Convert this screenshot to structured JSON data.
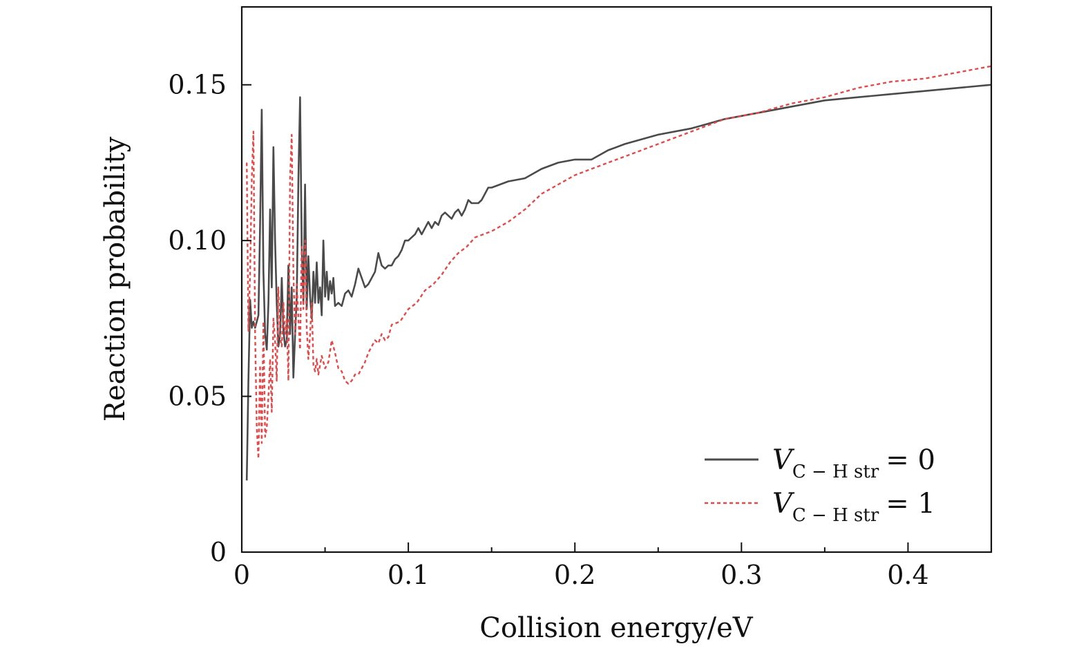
{
  "chart_data": {
    "type": "line",
    "title": "",
    "xlabel": "Collision energy/eV",
    "ylabel": "Reaction probability",
    "xlim": [
      0,
      0.45
    ],
    "ylim": [
      0,
      0.175
    ],
    "xticks": [
      0,
      0.1,
      0.2,
      0.3,
      0.4
    ],
    "xtick_labels": [
      "0",
      "0.1",
      "0.2",
      "0.3",
      "0.4"
    ],
    "xminor": [
      0.05,
      0.15,
      0.25,
      0.35
    ],
    "yticks": [
      0,
      0.05,
      0.1,
      0.15
    ],
    "ytick_labels": [
      "0",
      "0.05",
      "0.10",
      "0.15"
    ],
    "grid": false,
    "legend_position": "bottom-right",
    "series": [
      {
        "name": "V C−H str = 0",
        "legend_var": "V",
        "legend_sub": "C − H str",
        "legend_rhs": "= 0",
        "color": "#4a4a4a",
        "style": "solid",
        "x": [
          0.003,
          0.004,
          0.005,
          0.006,
          0.007,
          0.008,
          0.009,
          0.01,
          0.011,
          0.012,
          0.013,
          0.014,
          0.015,
          0.016,
          0.017,
          0.018,
          0.019,
          0.02,
          0.021,
          0.022,
          0.023,
          0.024,
          0.025,
          0.026,
          0.027,
          0.028,
          0.029,
          0.03,
          0.031,
          0.032,
          0.033,
          0.034,
          0.035,
          0.036,
          0.037,
          0.038,
          0.039,
          0.04,
          0.041,
          0.042,
          0.043,
          0.044,
          0.045,
          0.046,
          0.047,
          0.048,
          0.049,
          0.05,
          0.051,
          0.052,
          0.053,
          0.054,
          0.055,
          0.056,
          0.058,
          0.06,
          0.062,
          0.064,
          0.066,
          0.068,
          0.07,
          0.072,
          0.074,
          0.076,
          0.078,
          0.08,
          0.082,
          0.084,
          0.086,
          0.088,
          0.09,
          0.092,
          0.094,
          0.096,
          0.098,
          0.1,
          0.102,
          0.104,
          0.106,
          0.108,
          0.11,
          0.112,
          0.114,
          0.116,
          0.118,
          0.12,
          0.122,
          0.124,
          0.126,
          0.128,
          0.13,
          0.132,
          0.134,
          0.136,
          0.138,
          0.14,
          0.142,
          0.144,
          0.146,
          0.148,
          0.15,
          0.16,
          0.17,
          0.18,
          0.19,
          0.2,
          0.21,
          0.22,
          0.23,
          0.25,
          0.27,
          0.29,
          0.31,
          0.33,
          0.35,
          0.37,
          0.39,
          0.41,
          0.43,
          0.45
        ],
        "y": [
          0.023,
          0.055,
          0.081,
          0.072,
          0.074,
          0.072,
          0.074,
          0.076,
          0.105,
          0.142,
          0.09,
          0.07,
          0.065,
          0.08,
          0.11,
          0.085,
          0.13,
          0.1,
          0.08,
          0.066,
          0.07,
          0.088,
          0.071,
          0.066,
          0.068,
          0.092,
          0.07,
          0.085,
          0.056,
          0.07,
          0.082,
          0.12,
          0.146,
          0.098,
          0.08,
          0.118,
          0.078,
          0.095,
          0.082,
          0.075,
          0.09,
          0.08,
          0.093,
          0.08,
          0.085,
          0.076,
          0.1,
          0.082,
          0.09,
          0.081,
          0.087,
          0.083,
          0.088,
          0.079,
          0.08,
          0.079,
          0.083,
          0.084,
          0.082,
          0.086,
          0.091,
          0.088,
          0.085,
          0.086,
          0.088,
          0.09,
          0.096,
          0.092,
          0.091,
          0.092,
          0.092,
          0.094,
          0.095,
          0.097,
          0.1,
          0.1,
          0.101,
          0.102,
          0.104,
          0.102,
          0.104,
          0.106,
          0.104,
          0.106,
          0.105,
          0.108,
          0.109,
          0.108,
          0.107,
          0.109,
          0.11,
          0.108,
          0.11,
          0.113,
          0.112,
          0.112,
          0.112,
          0.113,
          0.115,
          0.117,
          0.117,
          0.119,
          0.12,
          0.123,
          0.125,
          0.126,
          0.126,
          0.129,
          0.131,
          0.134,
          0.136,
          0.139,
          0.141,
          0.143,
          0.145,
          0.146,
          0.147,
          0.148,
          0.149,
          0.15
        ]
      },
      {
        "name": "V C−H str = 1",
        "legend_var": "V",
        "legend_sub": "C − H str",
        "legend_rhs": "= 1",
        "color": "#e04a4a",
        "style": "dashed",
        "x": [
          0.003,
          0.004,
          0.005,
          0.006,
          0.007,
          0.008,
          0.009,
          0.01,
          0.011,
          0.012,
          0.013,
          0.014,
          0.015,
          0.016,
          0.017,
          0.018,
          0.019,
          0.02,
          0.021,
          0.022,
          0.023,
          0.024,
          0.025,
          0.026,
          0.027,
          0.028,
          0.029,
          0.03,
          0.031,
          0.032,
          0.033,
          0.034,
          0.035,
          0.036,
          0.037,
          0.038,
          0.039,
          0.04,
          0.041,
          0.042,
          0.043,
          0.044,
          0.045,
          0.046,
          0.048,
          0.05,
          0.052,
          0.054,
          0.056,
          0.058,
          0.06,
          0.062,
          0.064,
          0.066,
          0.068,
          0.07,
          0.072,
          0.074,
          0.076,
          0.078,
          0.08,
          0.082,
          0.084,
          0.086,
          0.088,
          0.09,
          0.095,
          0.1,
          0.105,
          0.11,
          0.115,
          0.12,
          0.125,
          0.13,
          0.135,
          0.14,
          0.145,
          0.15,
          0.16,
          0.17,
          0.18,
          0.19,
          0.2,
          0.21,
          0.22,
          0.23,
          0.25,
          0.27,
          0.29,
          0.31,
          0.33,
          0.35,
          0.37,
          0.39,
          0.41,
          0.43,
          0.45
        ],
        "y": [
          0.125,
          0.071,
          0.09,
          0.12,
          0.135,
          0.07,
          0.04,
          0.03,
          0.06,
          0.035,
          0.074,
          0.037,
          0.04,
          0.05,
          0.062,
          0.045,
          0.075,
          0.068,
          0.055,
          0.085,
          0.069,
          0.066,
          0.08,
          0.07,
          0.075,
          0.055,
          0.12,
          0.134,
          0.09,
          0.07,
          0.086,
          0.075,
          0.065,
          0.098,
          0.078,
          0.1,
          0.072,
          0.062,
          0.07,
          0.08,
          0.06,
          0.058,
          0.062,
          0.057,
          0.063,
          0.059,
          0.061,
          0.068,
          0.064,
          0.059,
          0.058,
          0.055,
          0.054,
          0.055,
          0.057,
          0.057,
          0.059,
          0.061,
          0.064,
          0.066,
          0.068,
          0.067,
          0.07,
          0.068,
          0.069,
          0.073,
          0.074,
          0.078,
          0.08,
          0.084,
          0.086,
          0.089,
          0.093,
          0.096,
          0.098,
          0.101,
          0.102,
          0.103,
          0.106,
          0.11,
          0.115,
          0.118,
          0.121,
          0.123,
          0.125,
          0.127,
          0.131,
          0.135,
          0.139,
          0.141,
          0.144,
          0.146,
          0.149,
          0.151,
          0.152,
          0.154,
          0.156
        ]
      }
    ]
  }
}
